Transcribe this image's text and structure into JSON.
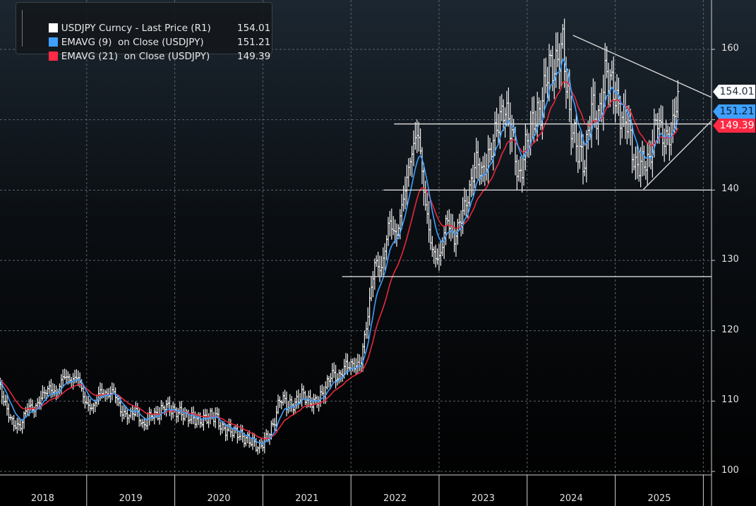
{
  "chart_data": {
    "type": "line",
    "subtype": "ohlc-bars-with-moving-averages",
    "legend": {
      "placement": "top-left",
      "items": [
        {
          "label": "USDJPY Curncy - Last Price (R1)",
          "value": "154.01",
          "color": "#ffffff"
        },
        {
          "label": "EMAVG (9)  on Close (USDJPY)",
          "value": "151.21",
          "color": "#3ea0ff"
        },
        {
          "label": "EMAVG (21)  on Close (USDJPY)",
          "value": "149.39",
          "color": "#ff2a44"
        }
      ]
    },
    "x_ticks": [
      "2018",
      "2019",
      "2020",
      "2021",
      "2022",
      "2023",
      "2024",
      "2025"
    ],
    "y_ticks": [
      100,
      110,
      120,
      130,
      140,
      150,
      160
    ],
    "y_tick_labels": [
      "100",
      "110",
      "120",
      "130",
      "140",
      "",
      "160"
    ],
    "ylim": [
      99.5,
      166.5
    ],
    "y_axis_side": "right",
    "grid": true,
    "monthly_close_start": "2018-01",
    "monthly_close": [
      109.2,
      106.7,
      106.3,
      109.3,
      108.8,
      110.8,
      111.9,
      111.0,
      113.7,
      112.9,
      113.5,
      109.7,
      108.9,
      111.4,
      110.9,
      111.4,
      108.3,
      107.9,
      108.7,
      106.3,
      108.1,
      108.0,
      109.5,
      108.6,
      108.4,
      107.9,
      107.5,
      107.2,
      107.8,
      107.9,
      105.9,
      105.9,
      105.5,
      104.7,
      104.3,
      103.3,
      104.7,
      106.6,
      110.7,
      109.3,
      109.6,
      111.1,
      109.7,
      110.0,
      111.3,
      114.0,
      113.2,
      115.1,
      115.1,
      115.0,
      121.7,
      129.7,
      128.7,
      135.7,
      133.3,
      138.9,
      144.7,
      148.7,
      138.1,
      131.1,
      130.1,
      136.2,
      132.9,
      136.3,
      139.3,
      144.3,
      142.3,
      145.5,
      149.4,
      151.7,
      148.2,
      141.0,
      146.9,
      150.0,
      151.3,
      157.8,
      157.3,
      160.9,
      150.0,
      146.2,
      143.6,
      152.0,
      149.8,
      157.2,
      154.4,
      150.6,
      149.9,
      143.1,
      144.0,
      144.0,
      150.7,
      147.0,
      147.9,
      154.01
    ],
    "start_price": 112.7,
    "last_values": {
      "price": 154.01,
      "ema9": 151.21,
      "ema21": 149.39
    },
    "annotations": [
      {
        "type": "trendline",
        "from": [
          2024.52,
          162.0
        ],
        "to": [
          2026.09,
          153.2
        ]
      },
      {
        "type": "trendline",
        "from": [
          2025.32,
          140.1
        ],
        "to": [
          2026.09,
          149.8
        ]
      },
      {
        "type": "hline",
        "y": 149.4,
        "from_x": 2022.49
      },
      {
        "type": "hline",
        "y": 140.0,
        "from_x": 2022.37
      },
      {
        "type": "hline",
        "y": 127.7,
        "from_x": 2021.9
      }
    ],
    "colors": {
      "price": "#ffffff",
      "ema9": "#3ea0ff",
      "ema21": "#e8283c",
      "annotation": "#d8d8d8"
    }
  }
}
